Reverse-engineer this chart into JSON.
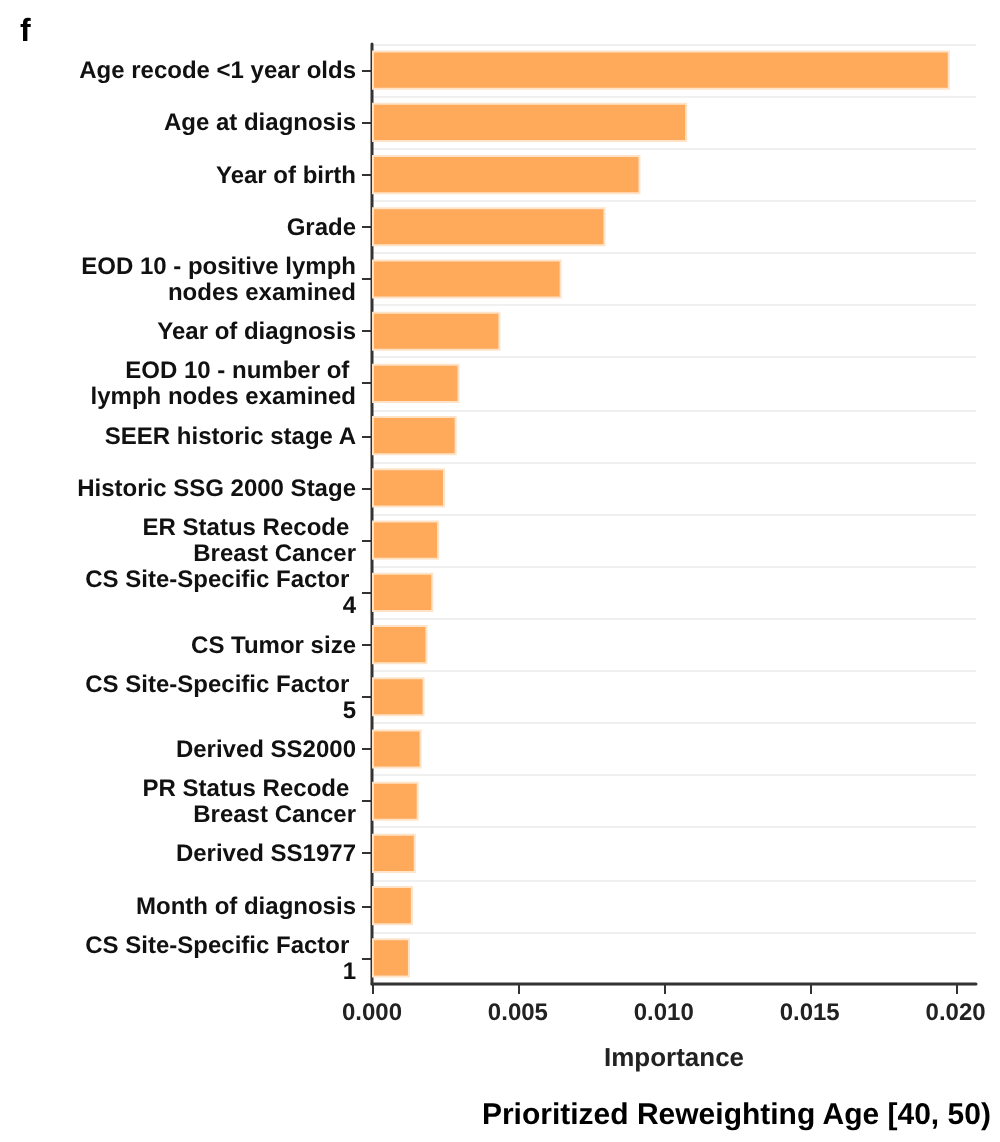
{
  "chart_data": {
    "type": "bar",
    "orientation": "horizontal",
    "categories": [
      "Age recode <1 year olds",
      "Age at diagnosis",
      "Year of birth",
      "Grade",
      "EOD 10 - positive lymph nodes examined",
      "Year of diagnosis",
      "EOD 10 - number of lymph nodes examined",
      "SEER historic stage A",
      "Historic SSG 2000 Stage",
      "ER Status Recode Breast Cancer",
      "CS Site-Specific Factor 4",
      "CS Tumor size",
      "CS Site-Specific Factor 5",
      "Derived SS2000",
      "PR Status Recode Breast Cancer",
      "Derived SS1977",
      "Month of diagnosis",
      "CS Site-Specific Factor 1"
    ],
    "values": [
      0.0198,
      0.0108,
      0.0092,
      0.008,
      0.0065,
      0.0044,
      0.003,
      0.0029,
      0.0025,
      0.0023,
      0.0021,
      0.0019,
      0.0018,
      0.0017,
      0.0016,
      0.0015,
      0.0014,
      0.0013
    ],
    "color": "#ffa95a",
    "xlim": [
      0,
      0.0207
    ],
    "xticks": [
      {
        "value": 0,
        "label": "0.000"
      },
      {
        "value": 0.005,
        "label": "0.005"
      },
      {
        "value": 0.01,
        "label": "0.010"
      },
      {
        "value": 0.015,
        "label": "0.015"
      },
      {
        "value": 0.02,
        "label": "0.020"
      }
    ],
    "xlabel": "Importance",
    "grid": "y",
    "annotations": [
      "f",
      "Prioritized Reweighting Age [40, 50)"
    ]
  }
}
